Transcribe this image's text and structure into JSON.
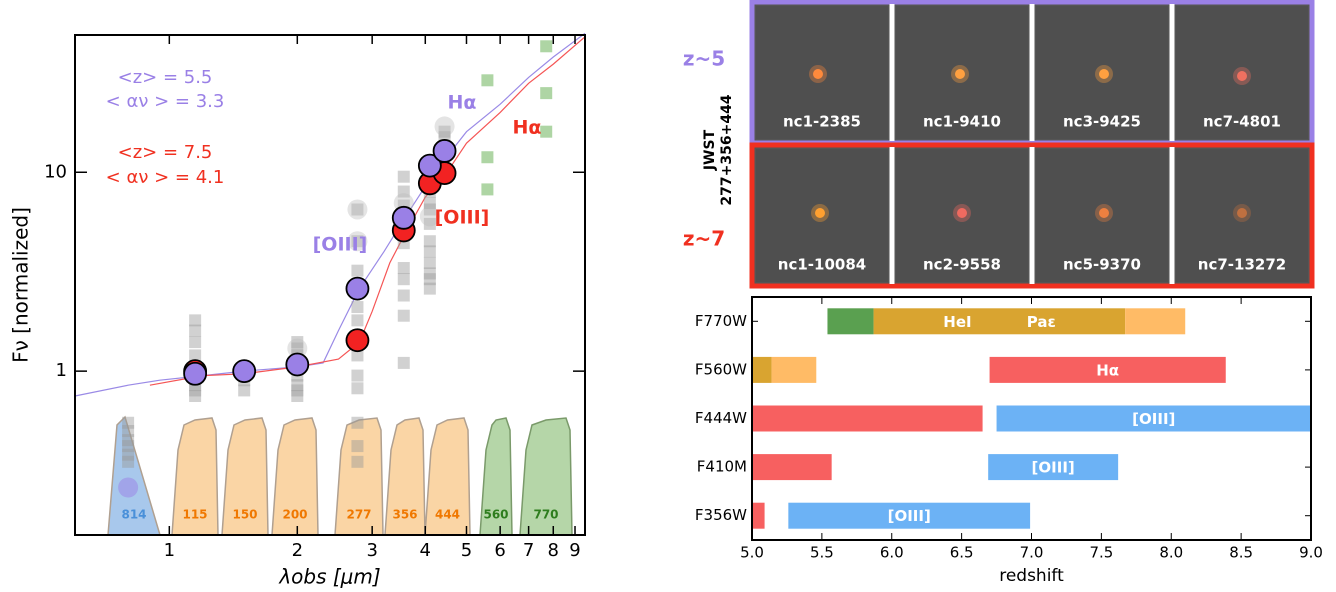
{
  "chart_data": [
    {
      "type": "scatter",
      "xscale": "log",
      "yscale": "log",
      "xlabel": "λobs [μm]",
      "ylabel": "Fν [normalized]",
      "xlim": [
        0.6,
        9.5
      ],
      "ylim": [
        0.15,
        49
      ],
      "xticks": [
        1,
        2,
        3,
        4,
        5,
        6,
        7,
        8,
        9
      ],
      "yticks": [
        1,
        10
      ],
      "filters": [
        {
          "label": "814",
          "color": "#4a90d9"
        },
        {
          "label": "115",
          "color": "#f07800"
        },
        {
          "label": "150",
          "color": "#f07800"
        },
        {
          "label": "200",
          "color": "#f07800"
        },
        {
          "label": "277",
          "color": "#f07800"
        },
        {
          "label": "356",
          "color": "#f07800"
        },
        {
          "label": "444",
          "color": "#f07800"
        },
        {
          "label": "560",
          "color": "#2e7d1e"
        },
        {
          "label": "770",
          "color": "#2e7d1e"
        }
      ],
      "annotations": [
        {
          "text": "<z> = 5.5",
          "color": "#9a80e6"
        },
        {
          "text": "< αν > = 3.3",
          "color": "#9a80e6"
        },
        {
          "text": "<z> = 7.5",
          "color": "#f03020"
        },
        {
          "text": "< αν > = 4.1",
          "color": "#f03020"
        },
        {
          "text": "Hα",
          "color": "#9a80e6"
        },
        {
          "text": "Hα",
          "color": "#f03020"
        },
        {
          "text": "[OIII]",
          "color": "#9a80e6"
        },
        {
          "text": "[OIII]",
          "color": "#f03020"
        }
      ],
      "series": [
        {
          "marker": "line",
          "color": "#9a8ae6",
          "x": [
            0.6,
            0.8,
            0.95,
            1.2,
            1.5,
            2.0,
            2.3,
            2.5,
            2.8,
            3.2,
            3.6,
            4.0,
            4.5,
            5,
            6,
            7,
            8,
            9.5
          ],
          "values": [
            0.75,
            0.85,
            0.9,
            0.95,
            1.0,
            1.05,
            1.1,
            1.6,
            2.6,
            4,
            6,
            8.5,
            12,
            16,
            22,
            30,
            38,
            50
          ]
        },
        {
          "marker": "line",
          "color": "#f55555",
          "x": [
            0.9,
            1.2,
            1.5,
            2,
            2.5,
            2.8,
            3,
            3.3,
            3.6,
            4,
            4.5,
            5,
            6,
            7,
            8,
            9.5
          ],
          "values": [
            0.85,
            0.95,
            0.97,
            1.05,
            1.15,
            1.4,
            2,
            3.5,
            5,
            7.5,
            10,
            14,
            20,
            28,
            35,
            48
          ]
        },
        {
          "marker": "square",
          "color": "#999999",
          "alpha": 0.45,
          "x": [
            0.8,
            0.8,
            0.8,
            0.8,
            0.8,
            0.8,
            1.15,
            1.15,
            1.15,
            1.15,
            1.15,
            1.15,
            1.15,
            1.15,
            1.15,
            1.5,
            1.5,
            2.0,
            2.0,
            2.0,
            2.0,
            2.0,
            2.0,
            2.0,
            2.0,
            2.77,
            2.77,
            2.77,
            2.77,
            2.77,
            2.77,
            2.77,
            2.77,
            2.77,
            2.77,
            2.77,
            2.77,
            3.56,
            3.56,
            3.56,
            3.56,
            3.56,
            3.56,
            3.56,
            3.56,
            3.56,
            3.56,
            4.1,
            4.1,
            4.1,
            4.1,
            4.1,
            4.1,
            4.1,
            4.1,
            4.1,
            4.1,
            4.1,
            4.44,
            4.44
          ],
          "values": [
            0.55,
            0.5,
            0.45,
            0.42,
            0.38,
            0.35,
            1.8,
            1.6,
            1.4,
            1.2,
            1.05,
            0.95,
            0.85,
            0.8,
            0.75,
            0.9,
            0.8,
            1.4,
            1.3,
            1.2,
            1.1,
            0.95,
            0.85,
            0.8,
            0.75,
            6.5,
            4.5,
            3.2,
            2.1,
            1.8,
            1.5,
            1.2,
            0.95,
            0.82,
            0.55,
            0.42,
            0.35,
            9.5,
            8,
            6.8,
            5,
            4.4,
            3.3,
            2.9,
            2.4,
            1.9,
            1.1,
            9,
            8,
            7,
            6.5,
            5.5,
            4.5,
            4,
            3.5,
            3.1,
            2.9,
            2.6,
            16,
            15
          ]
        },
        {
          "marker": "circle",
          "color": "#bbbbbb",
          "alpha": 0.4,
          "x": [
            1.15,
            2.0,
            2.77,
            2.77,
            3.56,
            4.1,
            4.44
          ],
          "values": [
            0.95,
            1.3,
            6.5,
            4.5,
            7,
            6,
            17
          ]
        },
        {
          "marker": "square",
          "color": "#6bb35a",
          "alpha": 0.55,
          "x": [
            5.6,
            5.6,
            5.6,
            7.7,
            7.7,
            7.7
          ],
          "values": [
            29,
            11.9,
            8.2,
            43,
            25,
            16
          ]
        },
        {
          "marker": "circle",
          "color": "#9a80e6",
          "alpha": 0.5,
          "x": [
            0.8
          ],
          "values": [
            0.26
          ]
        },
        {
          "marker": "circle",
          "color": "#f22222",
          "stroke": "#000000",
          "x": [
            1.15,
            2.77,
            3.56,
            4.1,
            4.44
          ],
          "values": [
            1.0,
            1.43,
            5.1,
            8.8,
            9.9
          ]
        },
        {
          "marker": "circle",
          "color": "#9a80e6",
          "stroke": "#000000",
          "x": [
            1.15,
            1.5,
            2.0,
            2.77,
            3.56,
            4.1,
            4.44
          ],
          "values": [
            0.97,
            1.0,
            1.08,
            2.6,
            5.9,
            10.8,
            12.8
          ]
        }
      ]
    },
    {
      "type": "bar",
      "xlabel": "redshift",
      "xlim": [
        5.0,
        9.0
      ],
      "xticks": [
        {
          "value": 5.0,
          "label": "5.0"
        },
        {
          "value": 5.5,
          "label": "5.5"
        },
        {
          "value": 6.0,
          "label": "6.0"
        },
        {
          "value": 6.5,
          "label": "6.5"
        },
        {
          "value": 7.0,
          "label": "7.0"
        },
        {
          "value": 7.5,
          "label": "7.5"
        },
        {
          "value": 8.0,
          "label": "8.0"
        },
        {
          "value": 8.5,
          "label": "8.5"
        },
        {
          "value": 9.0,
          "label": "9.0"
        }
      ],
      "categories": [
        "F770W",
        "F560W",
        "F444W",
        "F410M",
        "F356W"
      ],
      "bars": [
        [
          {
            "start": 5.54,
            "end": 5.87,
            "color": "#5aa050"
          },
          {
            "start": 5.87,
            "end": 7.67,
            "color": "#d9a430",
            "labels": [
              "HeI",
              "Paε"
            ]
          },
          {
            "start": 7.67,
            "end": 8.1,
            "color": "#ffbb66"
          }
        ],
        [
          {
            "start": 5.0,
            "end": 5.14,
            "color": "#d9a430"
          },
          {
            "start": 5.14,
            "end": 5.46,
            "color": "#ffbb66"
          },
          {
            "start": 6.7,
            "end": 8.39,
            "color": "#f76060",
            "labels": [
              "Hα"
            ]
          }
        ],
        [
          {
            "start": 5.0,
            "end": 6.65,
            "color": "#f76060"
          },
          {
            "start": 6.75,
            "end": 9.0,
            "color": "#6cb2f5",
            "labels": [
              "[OIII]"
            ]
          }
        ],
        [
          {
            "start": 5.0,
            "end": 5.57,
            "color": "#f76060"
          },
          {
            "start": 6.69,
            "end": 7.62,
            "color": "#6cb2f5",
            "labels": [
              "[OIII]"
            ]
          }
        ],
        [
          {
            "start": 5.0,
            "end": 5.09,
            "color": "#f76060"
          },
          {
            "start": 5.26,
            "end": 6.99,
            "color": "#6cb2f5",
            "labels": [
              "[OIII]"
            ]
          }
        ]
      ]
    }
  ],
  "cutouts": {
    "instrument": "JWST",
    "filters": "277+356+444",
    "rows": [
      {
        "label": "z~5",
        "color": "#9a80e6",
        "objects": [
          "nc1-2385",
          "nc1-9410",
          "nc3-9425",
          "nc7-4801"
        ]
      },
      {
        "label": "z~7",
        "color": "#f03020",
        "objects": [
          "nc1-10084",
          "nc2-9558",
          "nc5-9370",
          "nc7-13272"
        ]
      }
    ]
  }
}
